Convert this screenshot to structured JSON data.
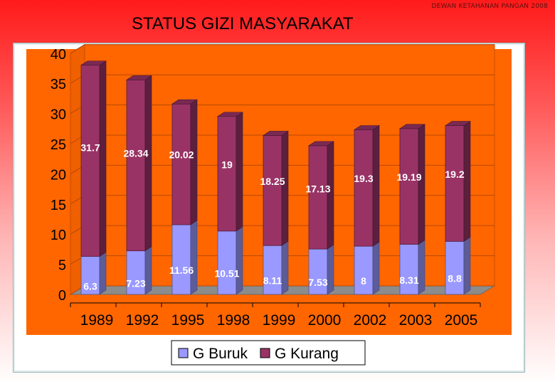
{
  "header": {
    "source_note": "DEWAN KETAHANAN PANGAN 2008",
    "title": "STATUS GIZI MASYARAKAT"
  },
  "chart_data": {
    "type": "bar",
    "stacked": true,
    "three_d": true,
    "categories": [
      "1989",
      "1992",
      "1995",
      "1998",
      "1999",
      "2000",
      "2002",
      "2003",
      "2005"
    ],
    "series": [
      {
        "name": "G Buruk",
        "color": "#9999ff",
        "values": [
          6.3,
          7.23,
          11.56,
          10.51,
          8.11,
          7.53,
          8,
          8.31,
          8.8
        ],
        "labels": [
          "6.3",
          "7.23",
          "11.56",
          "10.51",
          "8.11",
          "7.53",
          "8",
          "8.31",
          "8.8"
        ]
      },
      {
        "name": "G Kurang",
        "color": "#993366",
        "values": [
          31.7,
          28.34,
          20.02,
          19,
          18.25,
          17.13,
          19.3,
          19.19,
          19.2
        ],
        "labels": [
          "31.7",
          "28.34",
          "20.02",
          "19",
          "18.25",
          "17.13",
          "19.3",
          "19.19",
          "19.2"
        ]
      }
    ],
    "ylim": [
      0,
      40
    ],
    "yticks": [
      "0",
      "5",
      "10",
      "15",
      "20",
      "25",
      "30",
      "35",
      "40"
    ],
    "grid": true,
    "legend": "bottom",
    "background_color": "#ff6600",
    "plot_area_color": "#ff6600",
    "wall_color": "#ff6600"
  }
}
